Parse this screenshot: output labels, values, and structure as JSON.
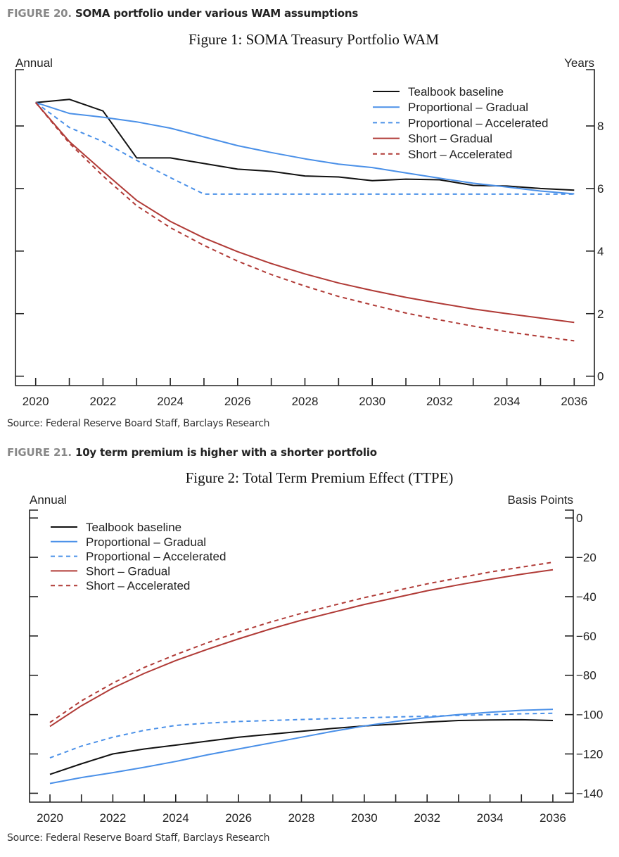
{
  "figures": [
    {
      "number": "FIGURE 20.",
      "title": "SOMA portfolio under various WAM assumptions",
      "source": "Source: Federal Reserve Board Staff, Barclays Research"
    },
    {
      "number": "FIGURE 21.",
      "title": "10y term premium is higher with a shorter portfolio",
      "source": "Source: Federal Reserve Board Staff, Barclays Research"
    }
  ],
  "chart_data": [
    {
      "type": "line",
      "title": "Figure 1: SOMA Treasury Portfolio WAM",
      "left_label": "Annual",
      "ylabel": "Years",
      "x": [
        2020,
        2021,
        2022,
        2023,
        2024,
        2025,
        2026,
        2027,
        2028,
        2029,
        2030,
        2031,
        2032,
        2033,
        2034,
        2035,
        2036
      ],
      "xticks": [
        2020,
        2022,
        2024,
        2026,
        2028,
        2030,
        2032,
        2034,
        2036
      ],
      "yticks": [
        0,
        2,
        4,
        6,
        8
      ],
      "xlim": [
        2019.4,
        2036.6
      ],
      "ylim": [
        -0.3,
        9.8
      ],
      "legend_position": "top-right",
      "grid": false,
      "series": [
        {
          "name": "Tealbook baseline",
          "color": "#111111",
          "dash": false,
          "values": [
            8.75,
            8.85,
            8.48,
            6.98,
            6.98,
            6.8,
            6.62,
            6.55,
            6.4,
            6.37,
            6.25,
            6.3,
            6.28,
            6.1,
            6.08,
            6.0,
            5.95
          ]
        },
        {
          "name": "Proportional – Gradual",
          "color": "#4a90e8",
          "dash": false,
          "values": [
            8.75,
            8.4,
            8.28,
            8.13,
            7.93,
            7.65,
            7.37,
            7.15,
            6.95,
            6.78,
            6.67,
            6.5,
            6.33,
            6.17,
            6.05,
            5.92,
            5.83
          ]
        },
        {
          "name": "Proportional – Accelerated",
          "color": "#4a90e8",
          "dash": true,
          "values": [
            8.75,
            7.95,
            7.5,
            6.9,
            6.35,
            5.82,
            5.82,
            5.82,
            5.82,
            5.82,
            5.82,
            5.82,
            5.82,
            5.82,
            5.82,
            5.82,
            5.82
          ]
        },
        {
          "name": "Short – Gradual",
          "color": "#b03a36",
          "dash": false,
          "values": [
            8.75,
            7.5,
            6.55,
            5.62,
            4.95,
            4.42,
            3.98,
            3.6,
            3.27,
            2.98,
            2.74,
            2.52,
            2.33,
            2.15,
            2.0,
            1.86,
            1.72
          ]
        },
        {
          "name": "Short – Accelerated",
          "color": "#b03a36",
          "dash": true,
          "values": [
            8.75,
            7.45,
            6.4,
            5.45,
            4.75,
            4.18,
            3.68,
            3.25,
            2.88,
            2.55,
            2.28,
            2.02,
            1.8,
            1.6,
            1.42,
            1.27,
            1.13
          ]
        }
      ]
    },
    {
      "type": "line",
      "title": "Figure 2: Total Term Premium Effect (TTPE)",
      "left_label": "Annual",
      "ylabel": "Basis Points",
      "x": [
        2020,
        2021,
        2022,
        2023,
        2024,
        2025,
        2026,
        2027,
        2028,
        2029,
        2030,
        2031,
        2032,
        2033,
        2034,
        2035,
        2036
      ],
      "xticks": [
        2020,
        2022,
        2024,
        2026,
        2028,
        2030,
        2032,
        2034,
        2036
      ],
      "yticks": [
        0,
        -20,
        -40,
        -60,
        -80,
        -100,
        -120,
        -140
      ],
      "xlim": [
        2019.35,
        2036.65
      ],
      "ylim": [
        -144.5,
        4
      ],
      "legend_position": "top-left",
      "grid": false,
      "series": [
        {
          "name": "Tealbook baseline",
          "color": "#111111",
          "dash": false,
          "values": [
            -130.4,
            -125,
            -120,
            -117.5,
            -115.5,
            -113.5,
            -111.5,
            -110,
            -108.5,
            -107,
            -105.8,
            -104.8,
            -103.8,
            -103,
            -102.7,
            -102.6,
            -103
          ]
        },
        {
          "name": "Proportional – Gradual",
          "color": "#4a90e8",
          "dash": false,
          "values": [
            -135,
            -132,
            -129.5,
            -126.8,
            -123.8,
            -120.5,
            -117.5,
            -114.5,
            -111.5,
            -108.5,
            -105.8,
            -103.5,
            -101.5,
            -100,
            -98.8,
            -97.8,
            -97.3
          ]
        },
        {
          "name": "Proportional – Accelerated",
          "color": "#4a90e8",
          "dash": true,
          "values": [
            -122,
            -116,
            -111.5,
            -108,
            -105.5,
            -104.3,
            -103.5,
            -103,
            -102.5,
            -102,
            -101.6,
            -101.2,
            -100.8,
            -100.4,
            -100,
            -99.6,
            -99.3
          ]
        },
        {
          "name": "Short – Gradual",
          "color": "#b03a36",
          "dash": false,
          "values": [
            -106,
            -95.5,
            -86.5,
            -79,
            -72.5,
            -66.8,
            -61.5,
            -56.5,
            -52,
            -48,
            -44,
            -40.5,
            -37,
            -34,
            -31.2,
            -28.6,
            -26.3
          ]
        },
        {
          "name": "Short – Accelerated",
          "color": "#b03a36",
          "dash": true,
          "values": [
            -104,
            -93,
            -84,
            -76,
            -69.5,
            -63.5,
            -58,
            -53,
            -48.5,
            -44.5,
            -40.5,
            -37,
            -33.5,
            -30.5,
            -27.5,
            -25,
            -22.5
          ]
        }
      ]
    }
  ]
}
